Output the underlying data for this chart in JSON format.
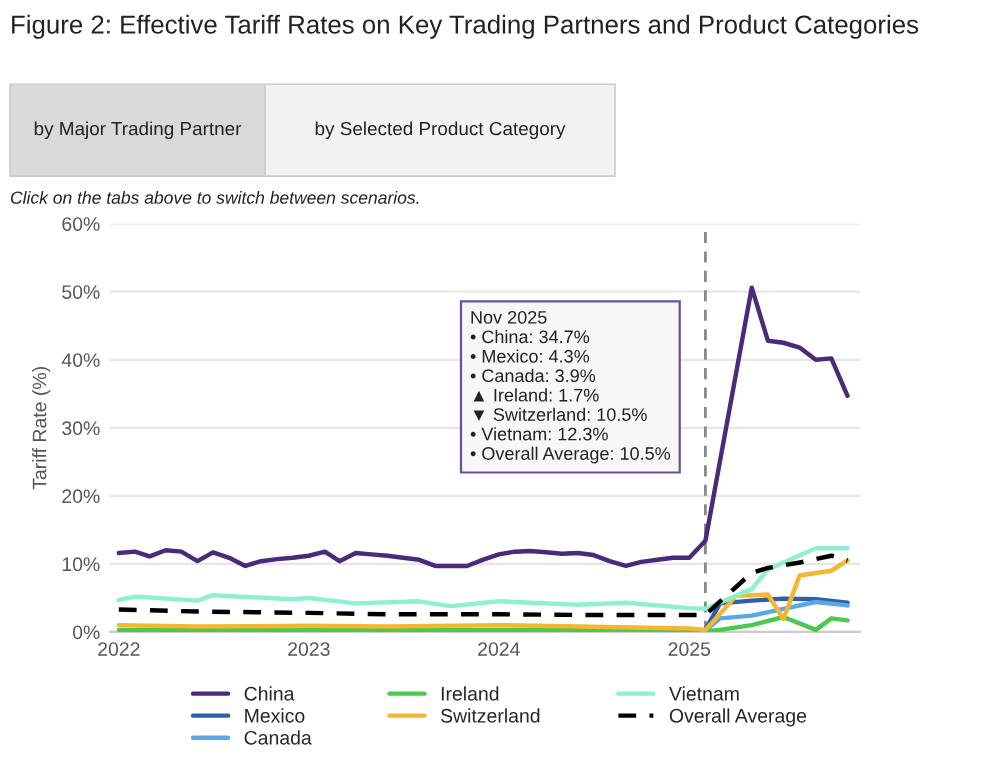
{
  "chart_data": {
    "type": "line",
    "title": "Figure 2: Effective Tariff Rates on Key Trading Partners and Product Categories",
    "subtitle": "Click on the tabs above to switch between scenarios.",
    "ylabel": "Tariff Rate (%)",
    "annotations": [
      "by Major Trading Partner",
      "by Selected Product Category",
      "Nov 2025\n• China: 34.7%\n• Mexico: 4.3%\n• Canada: 3.9%\n▲ Ireland: 1.7%\n▼ Switzerland: 10.5%\n• Vietnam: 12.3%\n• Overall Average: 10.5%"
    ],
    "series": [
      {
        "name": "China",
        "color": "#4b2a7b",
        "line_style": "solid",
        "x": [
          "2022-01",
          "2022-02",
          "2022-03",
          "2022-04",
          "2022-05",
          "2022-06",
          "2022-07",
          "2022-08",
          "2022-09",
          "2022-10",
          "2022-11",
          "2022-12",
          "2023-01",
          "2023-02",
          "2023-03",
          "2023-04",
          "2023-05",
          "2023-06",
          "2023-07",
          "2023-08",
          "2023-09",
          "2023-10",
          "2023-11",
          "2023-12",
          "2024-01",
          "2024-02",
          "2024-03",
          "2024-04",
          "2024-05",
          "2024-06",
          "2024-07",
          "2024-08",
          "2024-09",
          "2024-10",
          "2024-11",
          "2024-12",
          "2025-01",
          "2025-02",
          "2025-05",
          "2025-06",
          "2025-07",
          "2025-08",
          "2025-09",
          "2025-10",
          "2025-11"
        ],
        "values": [
          11.6,
          11.8,
          11.1,
          12.0,
          11.8,
          10.4,
          11.7,
          10.9,
          9.7,
          10.4,
          10.7,
          10.9,
          11.2,
          11.8,
          10.4,
          11.6,
          11.4,
          11.2,
          10.9,
          10.6,
          9.7,
          9.7,
          9.7,
          10.6,
          11.4,
          11.8,
          11.9,
          11.7,
          11.5,
          11.6,
          11.3,
          10.4,
          9.7,
          10.3,
          10.6,
          10.9,
          10.9,
          13.4,
          50.6,
          42.8,
          42.5,
          41.8,
          40.0,
          40.2,
          34.7
        ]
      },
      {
        "name": "Mexico",
        "color": "#2f5fa8",
        "line_style": "solid",
        "x": [
          "2025-02",
          "2025-03",
          "2025-05",
          "2025-07",
          "2025-09",
          "2025-11"
        ],
        "values": [
          0.3,
          4.2,
          4.6,
          4.9,
          4.8,
          4.3
        ]
      },
      {
        "name": "Canada",
        "color": "#5aa9e6",
        "line_style": "solid",
        "x": [
          "2025-02",
          "2025-03",
          "2025-05",
          "2025-07",
          "2025-09",
          "2025-11"
        ],
        "values": [
          0.2,
          2.0,
          2.4,
          3.4,
          4.4,
          3.9
        ]
      },
      {
        "name": "Ireland",
        "color": "#4cc94c",
        "line_style": "solid",
        "x": [
          "2022-01",
          "2023-01",
          "2024-01",
          "2025-01",
          "2025-02",
          "2025-03",
          "2025-05",
          "2025-07",
          "2025-09",
          "2025-10",
          "2025-11"
        ],
        "values": [
          0.3,
          0.3,
          0.3,
          0.3,
          0.1,
          0.3,
          1.0,
          2.2,
          0.3,
          2.0,
          1.7
        ]
      },
      {
        "name": "Switzerland",
        "color": "#f5b731",
        "line_style": "solid",
        "x": [
          "2022-01",
          "2022-06",
          "2023-01",
          "2023-06",
          "2024-01",
          "2024-06",
          "2025-01",
          "2025-02",
          "2025-04",
          "2025-06",
          "2025-07",
          "2025-08",
          "2025-10",
          "2025-11"
        ],
        "values": [
          1.0,
          0.8,
          0.9,
          0.8,
          1.0,
          0.8,
          0.5,
          0.3,
          5.3,
          5.5,
          1.9,
          8.3,
          9.0,
          10.5
        ]
      },
      {
        "name": "Vietnam",
        "color": "#8ef0cf",
        "line_style": "solid",
        "x": [
          "2022-01",
          "2022-02",
          "2022-06",
          "2022-07",
          "2022-12",
          "2023-01",
          "2023-04",
          "2023-08",
          "2023-10",
          "2024-01",
          "2024-06",
          "2024-09",
          "2025-01",
          "2025-02",
          "2025-05",
          "2025-06",
          "2025-07",
          "2025-09",
          "2025-11"
        ],
        "values": [
          4.7,
          5.2,
          4.6,
          5.4,
          4.8,
          5.0,
          4.2,
          4.5,
          3.8,
          4.5,
          4.0,
          4.3,
          3.5,
          3.4,
          6.3,
          9.2,
          10.2,
          12.3,
          12.3
        ]
      },
      {
        "name": "Overall Average",
        "color": "#000000",
        "line_style": "dashed",
        "x": [
          "2022-01",
          "2022-06",
          "2023-01",
          "2023-06",
          "2024-01",
          "2024-06",
          "2025-01",
          "2025-02",
          "2025-05",
          "2025-06",
          "2025-08",
          "2025-10",
          "2025-11"
        ],
        "values": [
          3.3,
          3.0,
          2.8,
          2.6,
          2.6,
          2.5,
          2.5,
          2.5,
          8.7,
          9.4,
          10.2,
          11.2,
          10.5
        ]
      }
    ],
    "xlim": [
      "2021-12-15",
      "2025-11-25"
    ],
    "xticks": [
      {
        "value": "2022-01-01",
        "label": "2022"
      },
      {
        "value": "2023-01-01",
        "label": "2023"
      },
      {
        "value": "2024-01-01",
        "label": "2024"
      },
      {
        "value": "2025-01-01",
        "label": "2025"
      }
    ],
    "ylim": [
      0,
      60
    ],
    "yticks": [
      {
        "value": 0,
        "label": "0%"
      },
      {
        "value": 10,
        "label": "10%"
      },
      {
        "value": 20,
        "label": "20%"
      },
      {
        "value": 30,
        "label": "30%"
      },
      {
        "value": 40,
        "label": "40%"
      },
      {
        "value": 50,
        "label": "50%"
      },
      {
        "value": 60,
        "label": "60%"
      }
    ],
    "ref_lines": [
      {
        "axis": "x",
        "value": "2025-02",
        "color": "#888888",
        "line_style": "dashed"
      }
    ],
    "grid": "y",
    "legend": "bottom"
  }
}
